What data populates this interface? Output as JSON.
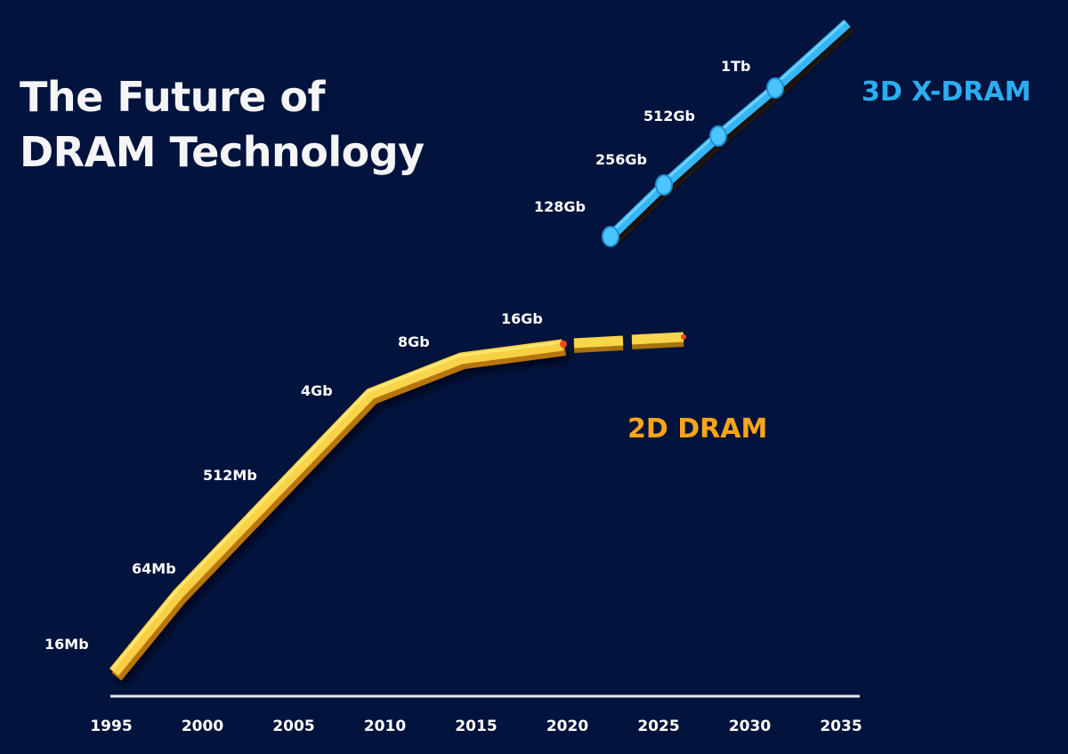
{
  "title_lines": [
    "The Future of",
    "DRAM Technology"
  ],
  "chart_data": {
    "type": "line",
    "title": "The Future of DRAM Technology",
    "xlabel": "",
    "ylabel": "",
    "x_ticks": [
      "1995",
      "2000",
      "2005",
      "2010",
      "2015",
      "2020",
      "2025",
      "2030",
      "2035"
    ],
    "xlim": [
      1995,
      2036
    ],
    "grid": false,
    "series": [
      {
        "name": "2D DRAM",
        "color": "#f9a51a",
        "line_color": "#f7d64a",
        "points": [
          {
            "x": 1996.5,
            "label": "16Mb"
          },
          {
            "x": 2000,
            "label": "64Mb"
          },
          {
            "x": 2004,
            "label": "512Mb"
          },
          {
            "x": 2010,
            "label": "4Gb"
          },
          {
            "x": 2015,
            "label": "8Gb"
          },
          {
            "x": 2020,
            "label": "16Gb"
          },
          {
            "x": 2023,
            "label": ""
          },
          {
            "x": 2027,
            "label": ""
          }
        ],
        "note": "Segments after 2020 drawn as separate projected blocks"
      },
      {
        "name": "3D X-DRAM",
        "color": "#2aaef0",
        "line_color": "#35b6f5",
        "points": [
          {
            "x": 2023,
            "label": "128Gb"
          },
          {
            "x": 2025.5,
            "label": "256Gb"
          },
          {
            "x": 2028.5,
            "label": "512Gb"
          },
          {
            "x": 2031.5,
            "label": "1Tb"
          },
          {
            "x": 2035.5,
            "label": ""
          }
        ]
      }
    ]
  },
  "labels": {
    "series_2d": "2D DRAM",
    "series_3d": "3D X-DRAM"
  }
}
